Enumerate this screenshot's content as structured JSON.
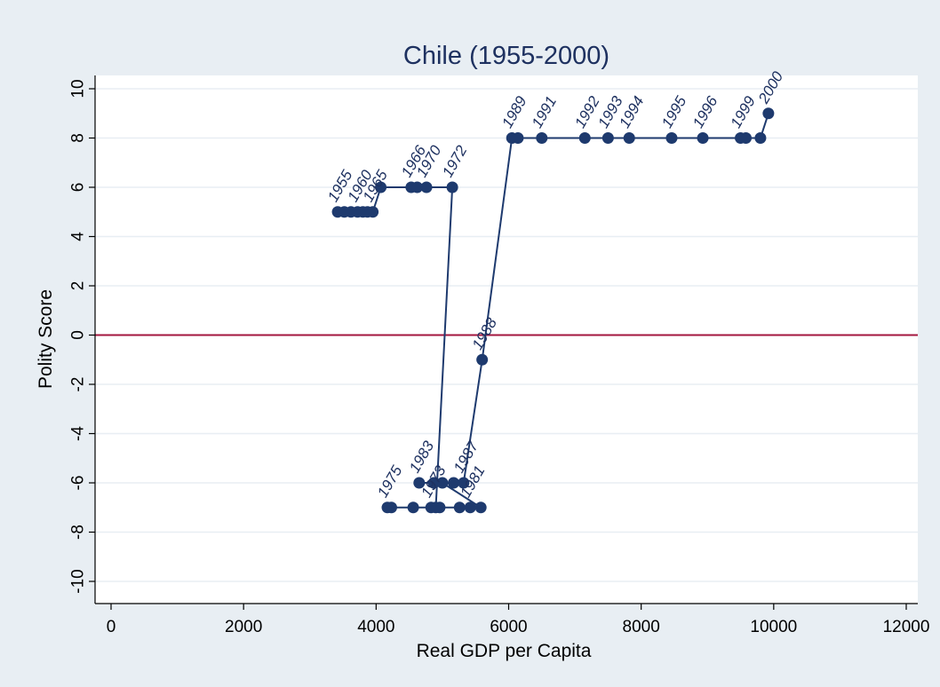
{
  "chart_data": {
    "type": "scatter",
    "title": "Chile (1955-2000)",
    "xlabel": "Real GDP per Capita",
    "ylabel": "Polity Score",
    "xlim": [
      0,
      12000
    ],
    "ylim": [
      -10,
      10
    ],
    "xticks": [
      "0",
      "2000",
      "4000",
      "6000",
      "8000",
      "10000",
      "12000"
    ],
    "yticks": [
      "-10",
      "-8",
      "-6",
      "-4",
      "-2",
      "0",
      "2",
      "4",
      "6",
      "8",
      "10"
    ],
    "grid": true,
    "reference_line": {
      "y": 0,
      "color": "#a3163e"
    },
    "colors": {
      "series": "#1e3a6e",
      "background": "#e8eef3",
      "plot": "#ffffff",
      "grid": "#e8eef3"
    },
    "series": [
      {
        "points": [
          {
            "x": 3420,
            "y": 5
          },
          {
            "x": 3520,
            "y": 5
          },
          {
            "x": 3620,
            "y": 5
          },
          {
            "x": 3720,
            "y": 5
          },
          {
            "x": 3800,
            "y": 5
          },
          {
            "x": 3870,
            "y": 5
          },
          {
            "x": 3950,
            "y": 5
          },
          {
            "x": 4070,
            "y": 6
          },
          {
            "x": 4530,
            "y": 6
          },
          {
            "x": 4620,
            "y": 6
          },
          {
            "x": 4760,
            "y": 6
          },
          {
            "x": 5150,
            "y": 6
          },
          {
            "x": 4900,
            "y": -7
          },
          {
            "x": 4230,
            "y": -7
          },
          {
            "x": 4170,
            "y": -7
          },
          {
            "x": 4560,
            "y": -7
          },
          {
            "x": 4830,
            "y": -7
          },
          {
            "x": 4960,
            "y": -7
          },
          {
            "x": 5260,
            "y": -7
          },
          {
            "x": 5420,
            "y": -7
          },
          {
            "x": 5580,
            "y": -7
          },
          {
            "x": 5000,
            "y": -6
          },
          {
            "x": 4870,
            "y": -6
          },
          {
            "x": 4650,
            "y": -6
          },
          {
            "x": 5170,
            "y": -6
          },
          {
            "x": 5320,
            "y": -6
          },
          {
            "x": 5600,
            "y": -1
          },
          {
            "x": 6050,
            "y": 8
          },
          {
            "x": 6140,
            "y": 8
          },
          {
            "x": 6500,
            "y": 8
          },
          {
            "x": 7150,
            "y": 8
          },
          {
            "x": 7500,
            "y": 8
          },
          {
            "x": 7820,
            "y": 8
          },
          {
            "x": 8460,
            "y": 8
          },
          {
            "x": 8930,
            "y": 8
          },
          {
            "x": 9500,
            "y": 8
          },
          {
            "x": 9580,
            "y": 8
          },
          {
            "x": 9800,
            "y": 8
          },
          {
            "x": 9920,
            "y": 9
          }
        ],
        "labels": [
          {
            "text": "1955",
            "x": 3420,
            "y": 5
          },
          {
            "text": "1960",
            "x": 3720,
            "y": 5
          },
          {
            "text": "1965",
            "x": 3950,
            "y": 5
          },
          {
            "text": "1966",
            "x": 4530,
            "y": 6
          },
          {
            "text": "1970",
            "x": 4760,
            "y": 6
          },
          {
            "text": "1972",
            "x": 5150,
            "y": 6
          },
          {
            "text": "1975",
            "x": 4170,
            "y": -7
          },
          {
            "text": "1973",
            "x": 4830,
            "y": -7
          },
          {
            "text": "1983",
            "x": 4650,
            "y": -6
          },
          {
            "text": "1987",
            "x": 5320,
            "y": -6
          },
          {
            "text": "1981",
            "x": 5420,
            "y": -7
          },
          {
            "text": "1988",
            "x": 5600,
            "y": -1
          },
          {
            "text": "1989",
            "x": 6050,
            "y": 8
          },
          {
            "text": "1991",
            "x": 6500,
            "y": 8
          },
          {
            "text": "1992",
            "x": 7150,
            "y": 8
          },
          {
            "text": "1993",
            "x": 7500,
            "y": 8
          },
          {
            "text": "1994",
            "x": 7820,
            "y": 8
          },
          {
            "text": "1995",
            "x": 8460,
            "y": 8
          },
          {
            "text": "1996",
            "x": 8930,
            "y": 8
          },
          {
            "text": "1999",
            "x": 9500,
            "y": 8
          },
          {
            "text": "2000",
            "x": 9920,
            "y": 9
          }
        ]
      }
    ]
  }
}
